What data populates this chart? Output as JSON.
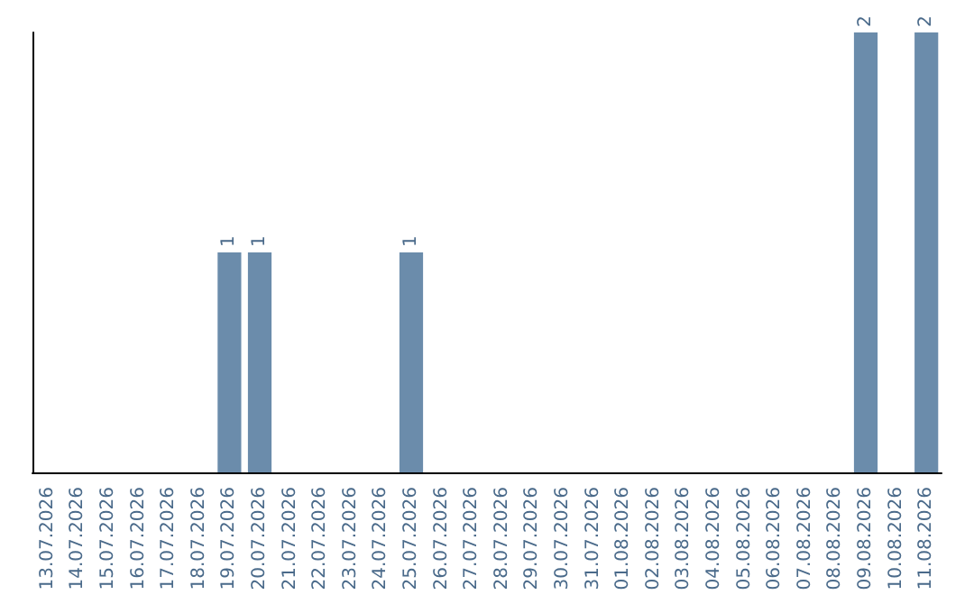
{
  "chart_data": {
    "type": "bar",
    "categories": [
      "13.07.2026",
      "14.07.2026",
      "15.07.2026",
      "16.07.2026",
      "17.07.2026",
      "18.07.2026",
      "19.07.2026",
      "20.07.2026",
      "21.07.2026",
      "22.07.2026",
      "23.07.2026",
      "24.07.2026",
      "25.07.2026",
      "26.07.2026",
      "27.07.2026",
      "28.07.2026",
      "29.07.2026",
      "30.07.2026",
      "31.07.2026",
      "01.08.2026",
      "02.08.2026",
      "03.08.2026",
      "04.08.2026",
      "05.08.2026",
      "06.08.2026",
      "07.08.2026",
      "08.08.2026",
      "09.08.2026",
      "10.08.2026",
      "11.08.2026"
    ],
    "values": [
      0,
      0,
      0,
      0,
      0,
      0,
      1,
      1,
      0,
      0,
      0,
      0,
      1,
      0,
      0,
      0,
      0,
      0,
      0,
      0,
      0,
      0,
      0,
      0,
      0,
      0,
      0,
      2,
      0,
      2
    ],
    "value_labels": [
      null,
      null,
      null,
      null,
      null,
      null,
      "1",
      "1",
      null,
      null,
      null,
      null,
      "1",
      null,
      null,
      null,
      null,
      null,
      null,
      null,
      null,
      null,
      null,
      null,
      null,
      null,
      null,
      "2",
      null,
      "2"
    ],
    "color": "#6b8cab",
    "ylim": [
      0,
      2
    ],
    "tick_labels": "x"
  }
}
